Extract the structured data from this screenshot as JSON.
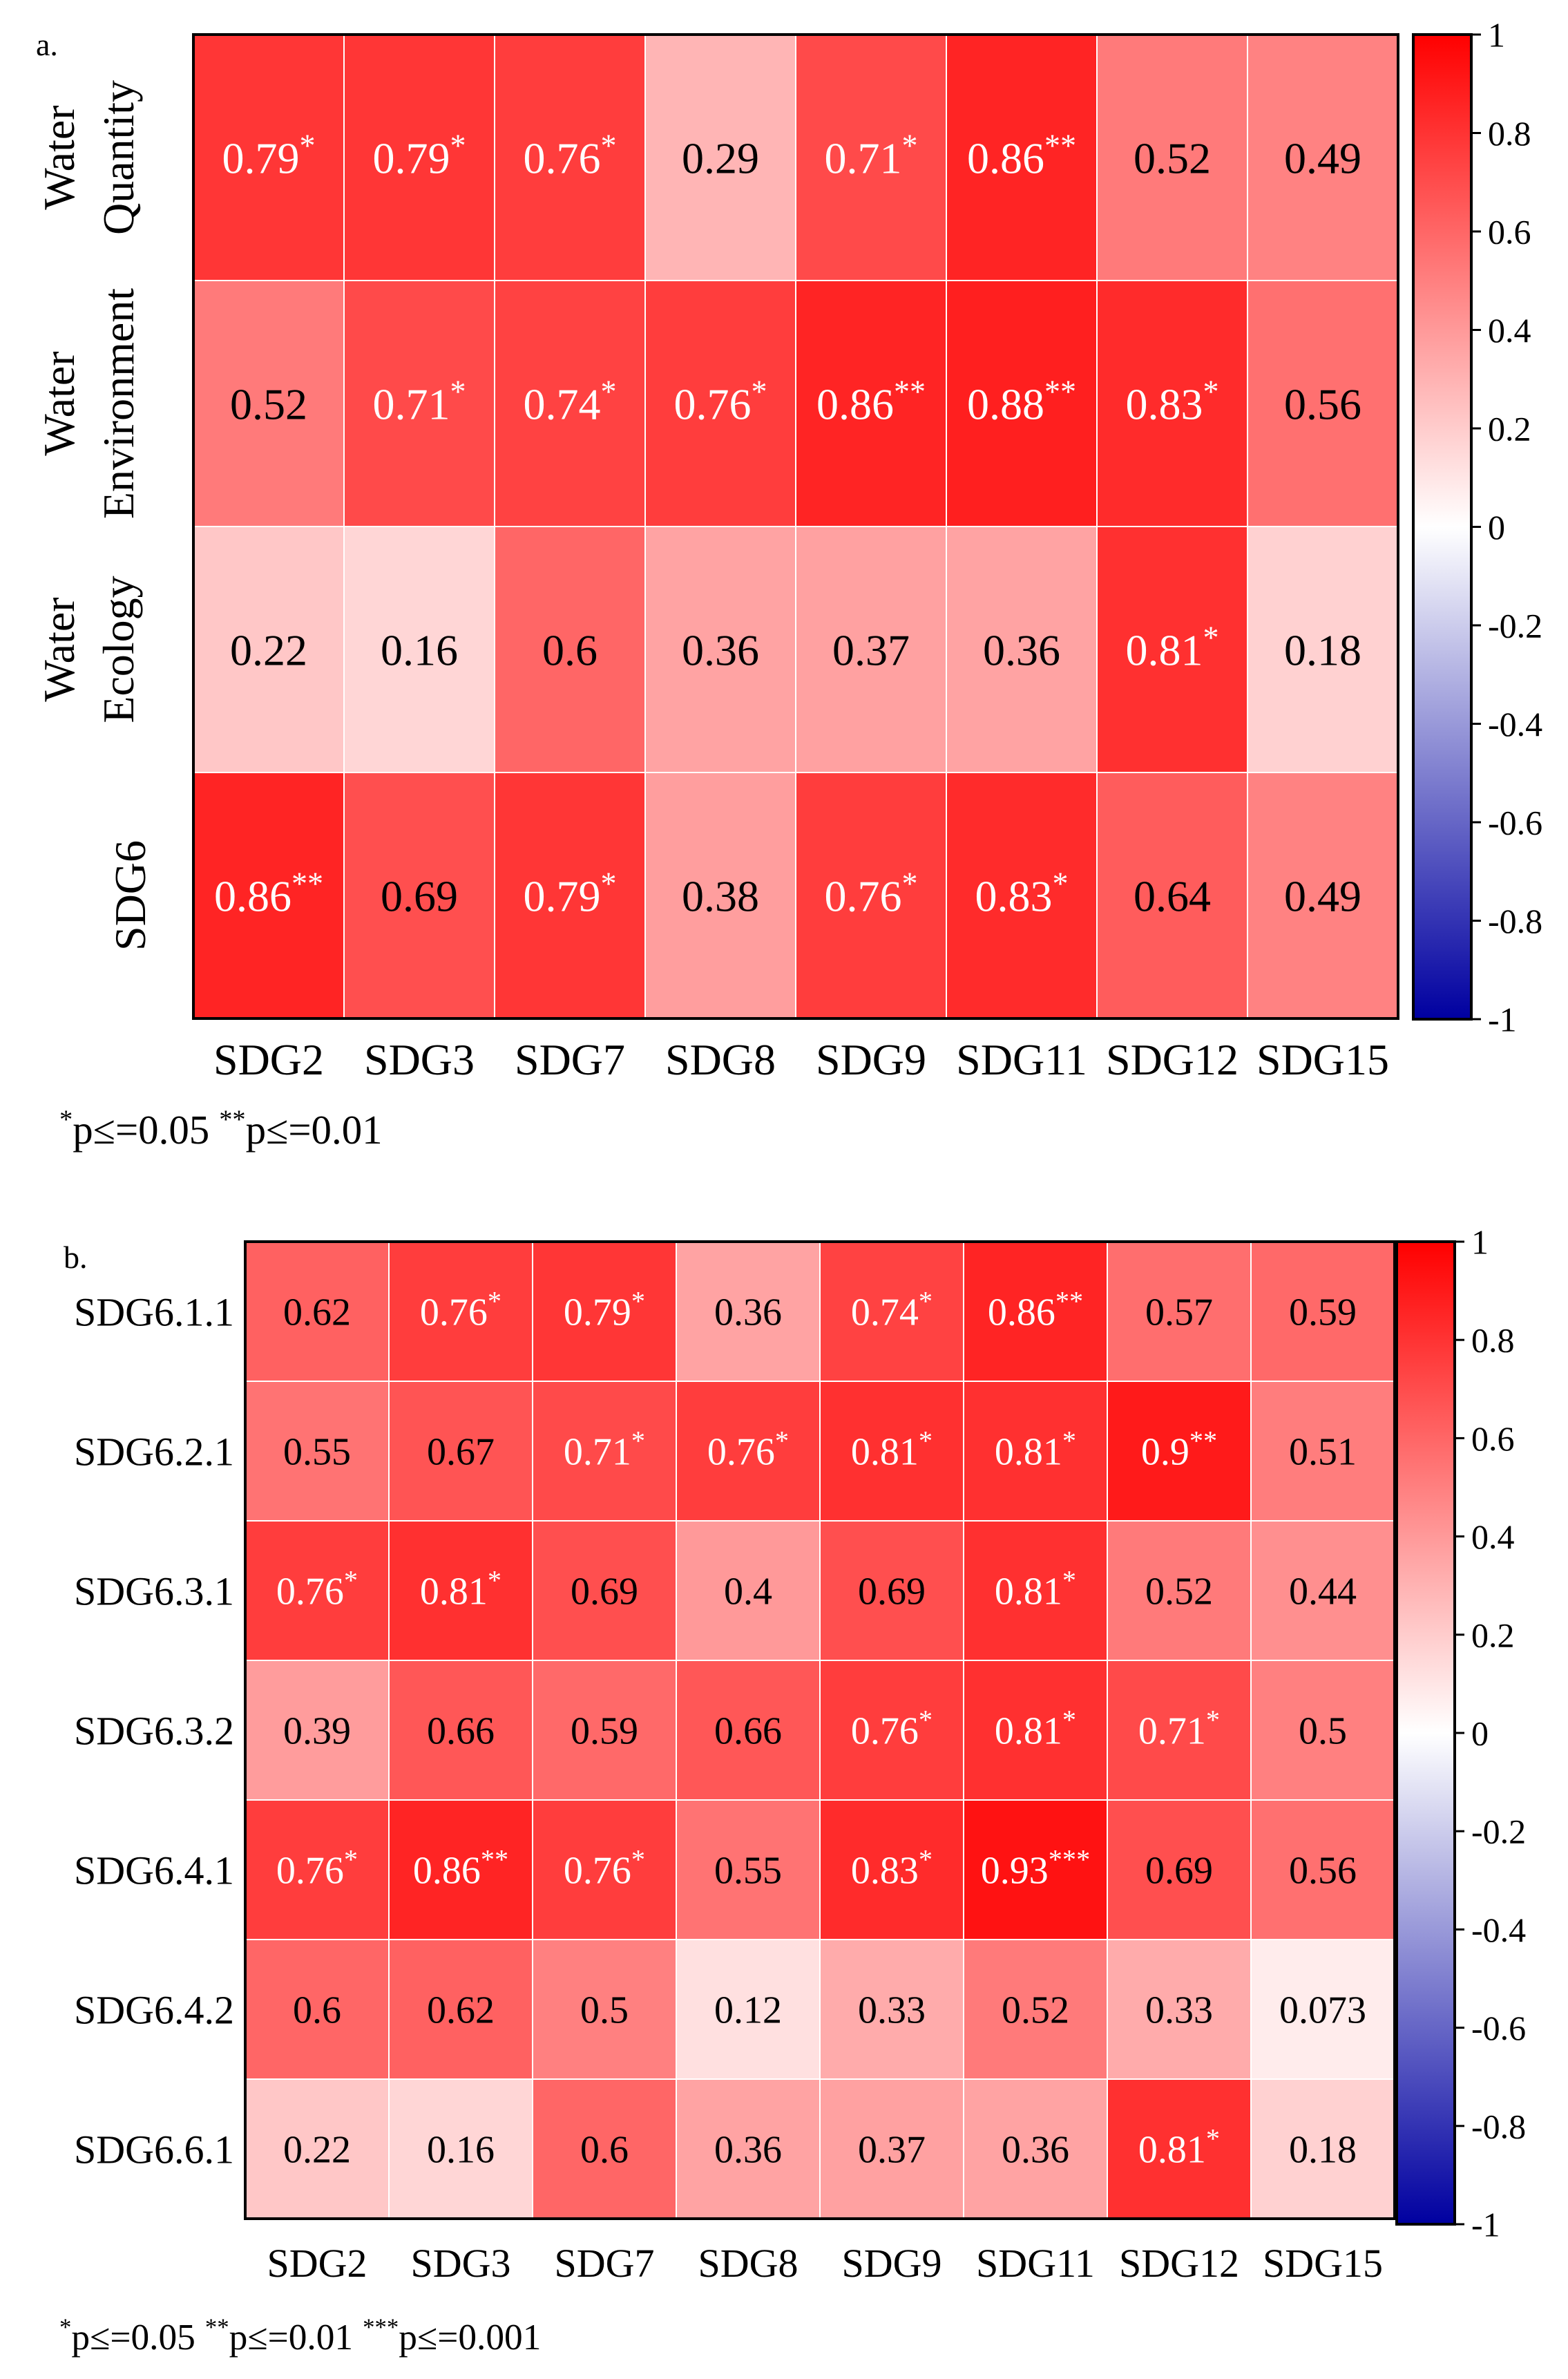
{
  "colors": {
    "positive": "#ff0000",
    "zero": "#ffffff",
    "negative": "#0000a0",
    "grid": "#ffffff",
    "frame": "#000000"
  },
  "chart_data": [
    {
      "type": "heatmap",
      "panel_label": "a.",
      "columns": [
        "SDG2",
        "SDG3",
        "SDG7",
        "SDG8",
        "SDG9",
        "SDG11",
        "SDG12",
        "SDG15"
      ],
      "rows": [
        {
          "label_lines": [
            "Water",
            "Quantity"
          ],
          "values": [
            0.79,
            0.79,
            0.76,
            0.29,
            0.71,
            0.86,
            0.52,
            0.49
          ],
          "marks": [
            "*",
            "*",
            "*",
            "",
            "*",
            "**",
            "",
            ""
          ]
        },
        {
          "label_lines": [
            "Water",
            "Environment"
          ],
          "values": [
            0.52,
            0.71,
            0.74,
            0.76,
            0.86,
            0.88,
            0.83,
            0.56
          ],
          "marks": [
            "",
            "*",
            "*",
            "*",
            "**",
            "**",
            "*",
            ""
          ]
        },
        {
          "label_lines": [
            "Water",
            "Ecology"
          ],
          "values": [
            0.22,
            0.16,
            0.6,
            0.36,
            0.37,
            0.36,
            0.81,
            0.18
          ],
          "marks": [
            "",
            "",
            "",
            "",
            "",
            "",
            "*",
            ""
          ]
        },
        {
          "label_lines": [
            "SDG6"
          ],
          "values": [
            0.86,
            0.69,
            0.79,
            0.38,
            0.76,
            0.83,
            0.64,
            0.49
          ],
          "marks": [
            "**",
            "",
            "*",
            "",
            "*",
            "*",
            "",
            ""
          ]
        }
      ],
      "colorbar": {
        "range": [
          -1,
          1
        ],
        "ticks": [
          "1",
          "0.8",
          "0.6",
          "0.4",
          "0.2",
          "0",
          "-0.2",
          "-0.4",
          "-0.6",
          "-0.8",
          "-1"
        ]
      },
      "footnote": [
        {
          "mark": "*",
          "text": "p≤=0.05"
        },
        {
          "mark": "**",
          "text": "p≤=0.01"
        }
      ]
    },
    {
      "type": "heatmap",
      "panel_label": "b.",
      "columns": [
        "SDG2",
        "SDG3",
        "SDG7",
        "SDG8",
        "SDG9",
        "SDG11",
        "SDG12",
        "SDG15"
      ],
      "rows": [
        {
          "label_lines": [
            "SDG6.1.1"
          ],
          "values": [
            0.62,
            0.76,
            0.79,
            0.36,
            0.74,
            0.86,
            0.57,
            0.59
          ],
          "marks": [
            "",
            "*",
            "*",
            "",
            "*",
            "**",
            "",
            ""
          ]
        },
        {
          "label_lines": [
            "SDG6.2.1"
          ],
          "values": [
            0.55,
            0.67,
            0.71,
            0.76,
            0.81,
            0.81,
            0.9,
            0.51
          ],
          "marks": [
            "",
            "",
            "*",
            "*",
            "*",
            "*",
            "**",
            ""
          ]
        },
        {
          "label_lines": [
            "SDG6.3.1"
          ],
          "values": [
            0.76,
            0.81,
            0.69,
            0.4,
            0.69,
            0.81,
            0.52,
            0.44
          ],
          "marks": [
            "*",
            "*",
            "",
            "",
            "",
            "*",
            "",
            ""
          ]
        },
        {
          "label_lines": [
            "SDG6.3.2"
          ],
          "values": [
            0.39,
            0.66,
            0.59,
            0.66,
            0.76,
            0.81,
            0.71,
            0.5
          ],
          "marks": [
            "",
            "",
            "",
            "",
            "*",
            "*",
            "*",
            ""
          ]
        },
        {
          "label_lines": [
            "SDG6.4.1"
          ],
          "values": [
            0.76,
            0.86,
            0.76,
            0.55,
            0.83,
            0.93,
            0.69,
            0.56
          ],
          "marks": [
            "*",
            "**",
            "*",
            "",
            "*",
            "***",
            "",
            ""
          ]
        },
        {
          "label_lines": [
            "SDG6.4.2"
          ],
          "values": [
            0.6,
            0.62,
            0.5,
            0.12,
            0.33,
            0.52,
            0.33,
            0.073
          ],
          "marks": [
            "",
            "",
            "",
            "",
            "",
            "",
            "",
            ""
          ]
        },
        {
          "label_lines": [
            "SDG6.6.1"
          ],
          "values": [
            0.22,
            0.16,
            0.6,
            0.36,
            0.37,
            0.36,
            0.81,
            0.18
          ],
          "marks": [
            "",
            "",
            "",
            "",
            "",
            "",
            "*",
            ""
          ]
        }
      ],
      "colorbar": {
        "range": [
          -1,
          1
        ],
        "ticks": [
          "1",
          "0.8",
          "0.6",
          "0.4",
          "0.2",
          "0",
          "-0.2",
          "-0.4",
          "-0.6",
          "-0.8",
          "-1"
        ]
      },
      "footnote": [
        {
          "mark": "*",
          "text": "p≤=0.05"
        },
        {
          "mark": "**",
          "text": "p≤=0.01"
        },
        {
          "mark": "***",
          "text": "p≤=0.001"
        }
      ]
    }
  ]
}
